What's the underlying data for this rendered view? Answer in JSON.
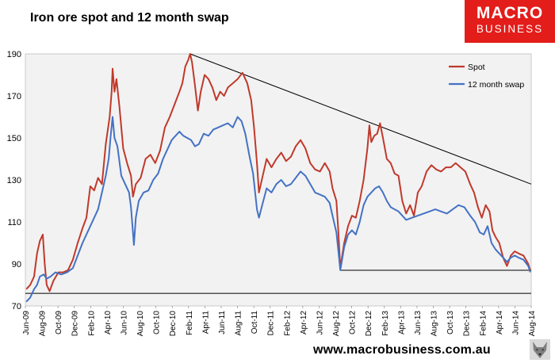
{
  "chart_data": {
    "type": "line",
    "title": "Iron ore spot and 12 month swap",
    "xlabel": "",
    "ylabel": "",
    "ylim": [
      70,
      190
    ],
    "yticks": [
      70,
      90,
      110,
      130,
      150,
      170,
      190
    ],
    "xlim": [
      2009.41,
      2014.63
    ],
    "x_tick_labels": [
      "Jun-09",
      "Aug-09",
      "Oct-09",
      "Dec-09",
      "Feb-10",
      "Apr-10",
      "Jun-10",
      "Aug-10",
      "Oct-10",
      "Dec-10",
      "Feb-11",
      "Apr-11",
      "Jun-11",
      "Aug-11",
      "Oct-11",
      "Dec-11",
      "Feb-12",
      "Apr-12",
      "Jun-12",
      "Aug-12",
      "Oct-12",
      "Dec-12",
      "Feb-13",
      "Apr-13",
      "Jun-13",
      "Aug-13",
      "Oct-13",
      "Dec-13",
      "Feb-14",
      "Apr-14",
      "Jun-14",
      "Aug-14"
    ],
    "legend_position": "top-right",
    "series": [
      {
        "name": "Spot",
        "color": "#c0392b",
        "points": [
          [
            2009.42,
            78
          ],
          [
            2009.46,
            80
          ],
          [
            2009.5,
            84
          ],
          [
            2009.53,
            95
          ],
          [
            2009.56,
            101
          ],
          [
            2009.59,
            104
          ],
          [
            2009.61,
            90
          ],
          [
            2009.63,
            80
          ],
          [
            2009.66,
            77
          ],
          [
            2009.7,
            82
          ],
          [
            2009.75,
            86
          ],
          [
            2009.8,
            86
          ],
          [
            2009.85,
            87
          ],
          [
            2009.9,
            92
          ],
          [
            2009.95,
            100
          ],
          [
            2010.0,
            107
          ],
          [
            2010.04,
            112
          ],
          [
            2010.08,
            127
          ],
          [
            2010.12,
            125
          ],
          [
            2010.16,
            131
          ],
          [
            2010.2,
            128
          ],
          [
            2010.24,
            147
          ],
          [
            2010.28,
            160
          ],
          [
            2010.3,
            172
          ],
          [
            2010.31,
            183
          ],
          [
            2010.33,
            172
          ],
          [
            2010.35,
            178
          ],
          [
            2010.38,
            165
          ],
          [
            2010.42,
            145
          ],
          [
            2010.46,
            138
          ],
          [
            2010.5,
            132
          ],
          [
            2010.52,
            122
          ],
          [
            2010.55,
            128
          ],
          [
            2010.6,
            131
          ],
          [
            2010.65,
            140
          ],
          [
            2010.7,
            142
          ],
          [
            2010.75,
            138
          ],
          [
            2010.8,
            144
          ],
          [
            2010.85,
            155
          ],
          [
            2010.9,
            160
          ],
          [
            2010.95,
            166
          ],
          [
            2011.0,
            172
          ],
          [
            2011.03,
            176
          ],
          [
            2011.06,
            184
          ],
          [
            2011.09,
            187
          ],
          [
            2011.11,
            190
          ],
          [
            2011.13,
            186
          ],
          [
            2011.16,
            175
          ],
          [
            2011.19,
            163
          ],
          [
            2011.22,
            172
          ],
          [
            2011.26,
            180
          ],
          [
            2011.3,
            178
          ],
          [
            2011.34,
            174
          ],
          [
            2011.38,
            168
          ],
          [
            2011.42,
            172
          ],
          [
            2011.46,
            170
          ],
          [
            2011.5,
            174
          ],
          [
            2011.55,
            176
          ],
          [
            2011.6,
            178
          ],
          [
            2011.65,
            181
          ],
          [
            2011.7,
            176
          ],
          [
            2011.74,
            168
          ],
          [
            2011.77,
            155
          ],
          [
            2011.8,
            138
          ],
          [
            2011.82,
            124
          ],
          [
            2011.86,
            132
          ],
          [
            2011.9,
            140
          ],
          [
            2011.95,
            136
          ],
          [
            2012.0,
            140
          ],
          [
            2012.05,
            143
          ],
          [
            2012.1,
            139
          ],
          [
            2012.15,
            141
          ],
          [
            2012.2,
            146
          ],
          [
            2012.25,
            149
          ],
          [
            2012.3,
            145
          ],
          [
            2012.35,
            138
          ],
          [
            2012.4,
            135
          ],
          [
            2012.45,
            134
          ],
          [
            2012.5,
            138
          ],
          [
            2012.55,
            134
          ],
          [
            2012.58,
            126
          ],
          [
            2012.62,
            120
          ],
          [
            2012.64,
            105
          ],
          [
            2012.66,
            88
          ],
          [
            2012.7,
            100
          ],
          [
            2012.74,
            108
          ],
          [
            2012.78,
            113
          ],
          [
            2012.82,
            112
          ],
          [
            2012.86,
            120
          ],
          [
            2012.9,
            130
          ],
          [
            2012.94,
            145
          ],
          [
            2012.96,
            156
          ],
          [
            2012.98,
            148
          ],
          [
            2013.01,
            151
          ],
          [
            2013.04,
            152
          ],
          [
            2013.07,
            157
          ],
          [
            2013.1,
            150
          ],
          [
            2013.14,
            140
          ],
          [
            2013.18,
            138
          ],
          [
            2013.22,
            133
          ],
          [
            2013.26,
            132
          ],
          [
            2013.3,
            120
          ],
          [
            2013.34,
            114
          ],
          [
            2013.38,
            118
          ],
          [
            2013.42,
            113
          ],
          [
            2013.46,
            124
          ],
          [
            2013.5,
            127
          ],
          [
            2013.55,
            134
          ],
          [
            2013.6,
            137
          ],
          [
            2013.65,
            135
          ],
          [
            2013.7,
            134
          ],
          [
            2013.75,
            136
          ],
          [
            2013.8,
            136
          ],
          [
            2013.85,
            138
          ],
          [
            2013.9,
            136
          ],
          [
            2013.95,
            134
          ],
          [
            2014.0,
            128
          ],
          [
            2014.04,
            124
          ],
          [
            2014.08,
            117
          ],
          [
            2014.12,
            112
          ],
          [
            2014.16,
            118
          ],
          [
            2014.2,
            115
          ],
          [
            2014.23,
            106
          ],
          [
            2014.26,
            103
          ],
          [
            2014.3,
            100
          ],
          [
            2014.34,
            93
          ],
          [
            2014.38,
            89
          ],
          [
            2014.42,
            94
          ],
          [
            2014.46,
            96
          ],
          [
            2014.5,
            95
          ],
          [
            2014.55,
            94
          ],
          [
            2014.6,
            90
          ],
          [
            2014.62,
            87
          ]
        ]
      },
      {
        "name": "12 month swap",
        "color": "#4472c4",
        "points": [
          [
            2009.42,
            72
          ],
          [
            2009.46,
            74
          ],
          [
            2009.5,
            78
          ],
          [
            2009.53,
            80
          ],
          [
            2009.56,
            84
          ],
          [
            2009.6,
            85
          ],
          [
            2009.63,
            83
          ],
          [
            2009.67,
            84
          ],
          [
            2009.72,
            86
          ],
          [
            2009.78,
            85
          ],
          [
            2009.84,
            86
          ],
          [
            2009.9,
            88
          ],
          [
            2009.95,
            94
          ],
          [
            2010.0,
            100
          ],
          [
            2010.04,
            104
          ],
          [
            2010.08,
            108
          ],
          [
            2010.12,
            112
          ],
          [
            2010.16,
            116
          ],
          [
            2010.2,
            124
          ],
          [
            2010.24,
            132
          ],
          [
            2010.27,
            140
          ],
          [
            2010.29,
            151
          ],
          [
            2010.31,
            160
          ],
          [
            2010.33,
            150
          ],
          [
            2010.36,
            146
          ],
          [
            2010.4,
            132
          ],
          [
            2010.44,
            128
          ],
          [
            2010.48,
            124
          ],
          [
            2010.5,
            117
          ],
          [
            2010.52,
            105
          ],
          [
            2010.53,
            99
          ],
          [
            2010.55,
            112
          ],
          [
            2010.58,
            120
          ],
          [
            2010.63,
            124
          ],
          [
            2010.68,
            125
          ],
          [
            2010.73,
            130
          ],
          [
            2010.78,
            133
          ],
          [
            2010.83,
            140
          ],
          [
            2010.88,
            145
          ],
          [
            2010.92,
            149
          ],
          [
            2010.96,
            151
          ],
          [
            2011.0,
            153
          ],
          [
            2011.04,
            151
          ],
          [
            2011.08,
            150
          ],
          [
            2011.12,
            149
          ],
          [
            2011.16,
            146
          ],
          [
            2011.2,
            147
          ],
          [
            2011.25,
            152
          ],
          [
            2011.3,
            151
          ],
          [
            2011.35,
            154
          ],
          [
            2011.4,
            155
          ],
          [
            2011.45,
            156
          ],
          [
            2011.5,
            157
          ],
          [
            2011.55,
            155
          ],
          [
            2011.6,
            160
          ],
          [
            2011.64,
            158
          ],
          [
            2011.68,
            152
          ],
          [
            2011.72,
            142
          ],
          [
            2011.76,
            133
          ],
          [
            2011.8,
            116
          ],
          [
            2011.82,
            112
          ],
          [
            2011.86,
            119
          ],
          [
            2011.9,
            126
          ],
          [
            2011.95,
            124
          ],
          [
            2012.0,
            128
          ],
          [
            2012.05,
            130
          ],
          [
            2012.1,
            127
          ],
          [
            2012.15,
            128
          ],
          [
            2012.2,
            131
          ],
          [
            2012.25,
            134
          ],
          [
            2012.3,
            132
          ],
          [
            2012.35,
            128
          ],
          [
            2012.4,
            124
          ],
          [
            2012.45,
            123
          ],
          [
            2012.5,
            122
          ],
          [
            2012.55,
            119
          ],
          [
            2012.58,
            113
          ],
          [
            2012.62,
            105
          ],
          [
            2012.64,
            96
          ],
          [
            2012.66,
            87
          ],
          [
            2012.7,
            98
          ],
          [
            2012.74,
            104
          ],
          [
            2012.78,
            106
          ],
          [
            2012.82,
            104
          ],
          [
            2012.86,
            110
          ],
          [
            2012.9,
            118
          ],
          [
            2012.94,
            122
          ],
          [
            2012.98,
            124
          ],
          [
            2013.02,
            126
          ],
          [
            2013.06,
            127
          ],
          [
            2013.1,
            124
          ],
          [
            2013.14,
            120
          ],
          [
            2013.18,
            117
          ],
          [
            2013.22,
            116
          ],
          [
            2013.26,
            115
          ],
          [
            2013.3,
            113
          ],
          [
            2013.34,
            111
          ],
          [
            2013.4,
            112
          ],
          [
            2013.46,
            113
          ],
          [
            2013.52,
            114
          ],
          [
            2013.58,
            115
          ],
          [
            2013.64,
            116
          ],
          [
            2013.7,
            115
          ],
          [
            2013.76,
            114
          ],
          [
            2013.82,
            116
          ],
          [
            2013.88,
            118
          ],
          [
            2013.94,
            117
          ],
          [
            2014.0,
            113
          ],
          [
            2014.05,
            110
          ],
          [
            2014.1,
            105
          ],
          [
            2014.14,
            104
          ],
          [
            2014.18,
            108
          ],
          [
            2014.22,
            100
          ],
          [
            2014.26,
            97
          ],
          [
            2014.3,
            95
          ],
          [
            2014.34,
            93
          ],
          [
            2014.38,
            91
          ],
          [
            2014.42,
            93
          ],
          [
            2014.46,
            94
          ],
          [
            2014.5,
            93
          ],
          [
            2014.55,
            92
          ],
          [
            2014.6,
            89
          ],
          [
            2014.62,
            86
          ]
        ]
      }
    ],
    "trendlines": [
      {
        "name": "resistance-line",
        "from": [
          2011.11,
          190
        ],
        "to": [
          2014.63,
          128
        ]
      },
      {
        "name": "support-line-2012",
        "from": [
          2012.66,
          87
        ],
        "to": [
          2014.63,
          87
        ]
      },
      {
        "name": "support-line-2009",
        "from": [
          2009.41,
          76
        ],
        "to": [
          2014.63,
          76
        ]
      }
    ]
  },
  "logo": {
    "line1": "MACRO",
    "line2": "BUSINESS"
  },
  "footer": {
    "url": "www.macrobusiness.com.au"
  },
  "colors": {
    "plot_background": "#f2f2f2",
    "logo_red": "#e31d1a"
  }
}
